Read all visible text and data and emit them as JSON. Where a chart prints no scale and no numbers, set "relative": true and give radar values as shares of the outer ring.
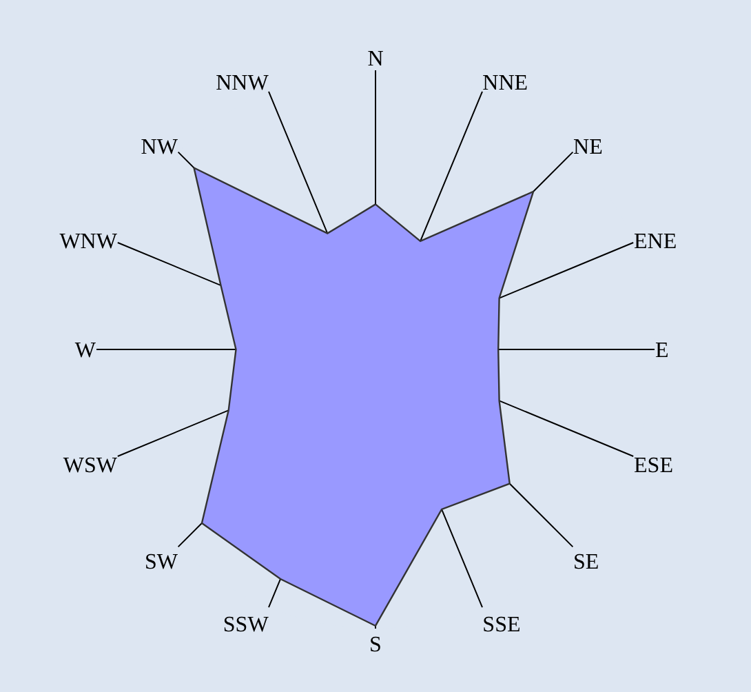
{
  "chart_data": {
    "type": "radar",
    "relative": true,
    "categories": [
      "N",
      "NNE",
      "NE",
      "ENE",
      "E",
      "ESE",
      "SE",
      "SSE",
      "S",
      "SSW",
      "SW",
      "WSW",
      "W",
      "WNW",
      "NW",
      "NNW"
    ],
    "series": [
      {
        "color": "#9999ff",
        "values": [
          0.52,
          0.42,
          0.8,
          0.48,
          0.44,
          0.48,
          0.68,
          0.62,
          0.99,
          0.89,
          0.88,
          0.57,
          0.5,
          0.6,
          0.92,
          0.45
        ]
      }
    ],
    "grid": true
  }
}
